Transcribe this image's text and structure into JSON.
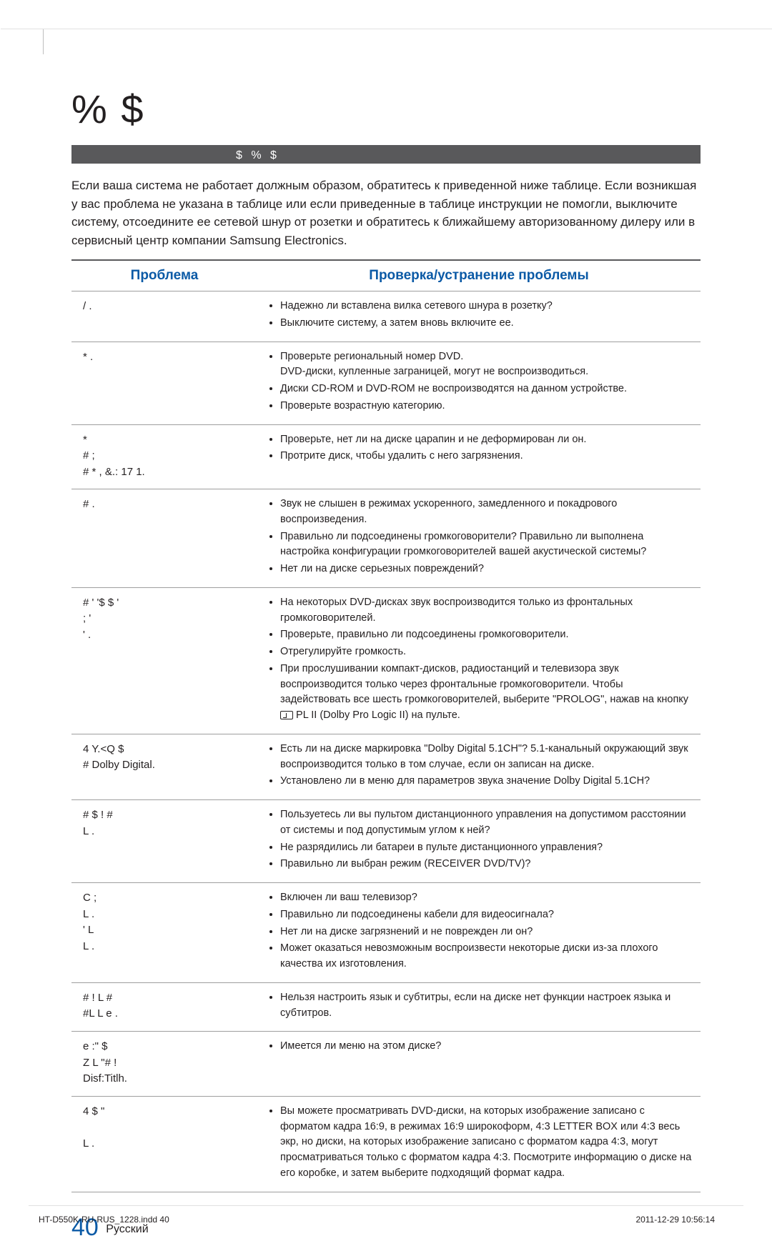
{
  "colors": {
    "heading_blue": "#0b5aa6",
    "section_bar_bg": "#59595b",
    "section_bar_text": "#ffffff",
    "body_text": "#231f20",
    "rule": "#9e9e9e",
    "top_rule": "#bfbfbf",
    "background": "#ffffff"
  },
  "typography": {
    "title_fontsize": 56,
    "th_fontsize": 19,
    "body_fontsize": 14.5,
    "intro_fontsize": 17,
    "footer_fontsize": 12,
    "pagenum_big": 34
  },
  "title": "%               $",
  "section_bar": "$ %       $",
  "intro_text": "Если ваша система не работает должным образом, обратитесь к приведенной ниже таблице. Если возникшая у вас проблема не указана в таблице или если приведенные в таблице инструкции не помогли, выключите систему, отсоедините ее сетевой шнур от розетки и обратитесь к ближайшему авторизованному дилеру или в сервисный центр компании Samsung Electronics.",
  "table": {
    "head_problem": "Проблема",
    "head_fix": "Проверка/устранение проблемы",
    "rows": [
      {
        "problem": "/                     .",
        "fixes": [
          "Надежно ли вставлена вилка сетевого шнура в розетку?",
          "Выключите систему, а затем вновь включите ее."
        ]
      },
      {
        "problem": "*                     .",
        "fixes": [
          "Проверьте региональный номер DVD.\nDVD-диски, купленные заграницей, могут не воспроизводиться.",
          "Диски CD-ROM и DVD-ROM не воспроизводятся на данном устройстве.",
          "Проверьте возрастную категорию."
        ]
      },
      {
        "problem": "*\n   #            ;\n   # * , &.: 17 1.",
        "fixes": [
          "Проверьте, нет ли на диске царапин и не деформирован ли он.",
          "Протрите диск, чтобы удалить с него загрязнения."
        ]
      },
      {
        "problem": "#                   .",
        "fixes": [
          "Звук не слышен в режимах ускоренного, замедленного и покадрового воспроизведения.",
          "Правильно ли подсоединены громкоговорители? Правильно ли выполнена настройка конфигурации громкоговорителей вашей акустической системы?",
          "Нет ли на диске серьезных повреждений?"
        ]
      },
      {
        "problem": "#    '    '$        $  '\n               ;        '\n'         .",
        "fixes": [
          "На некоторых DVD-дисках звук воспроизводится только из фронтальных громкоговорителей.",
          "Проверьте, правильно ли подсоединены громкоговорители.",
          "Отрегулируйте громкость.",
          "При прослушивании компакт-дисков, радиостанций и телевизора звук воспроизводится только через фронтальные громкоговорители. Чтобы задействовать все шесть громкоговорителей, выберите \"PROLOG\", нажав на кнопку  PL II (Dolby Pro Logic II) на пульте."
        ],
        "has_icon": true
      },
      {
        "problem": "4            Y.<Q      $\n#          Dolby Digital.",
        "fixes": [
          "Есть ли на диске маркировка \"Dolby Digital 5.1CH\"? 5.1-канальный окружающий звук воспроизводится только в том случае, если он записан на диске.",
          "Установлено ли в меню для параметров звука значение Dolby Digital 5.1CH?"
        ]
      },
      {
        "problem": "# $      !      #\nL   .",
        "fixes": [
          "Пользуетесь ли вы пультом дистанционного управления на допустимом расстоянии от системы и под допустимым углом к ней?",
          "Не разрядились ли батареи в пульте дистанционного управления?",
          "Правильно ли выбран режим (RECEIVER DVD/TV)?"
        ]
      },
      {
        "problem": "      C      ;\nL                   .\n'         L\nL          .",
        "fixes": [
          "Включен ли ваш телевизор?",
          "Правильно ли подсоединены кабели для видеосигнала?",
          "Нет ли на диске загрязнений и не поврежден ли он?",
          "Может оказаться невозможным воспроизвести некоторые диски из-за плохого качества их изготовления."
        ]
      },
      {
        "problem": "# !   L       #\n     #L       L  e .",
        "fixes": [
          "Нельзя настроить язык и субтитры, если на диске нет функции настроек языка и субтитров."
        ]
      },
      {
        "problem": "   e     :\" $\nZ           L    \"# !\nDisf:Titlh.",
        "fixes": [
          "Имеется ли меню на этом диске?"
        ]
      },
      {
        "problem": "4           $ \"\n\nL    .",
        "fixes": [
          "Вы можете просматривать DVD-диски, на которых изображение записано с форматом кадра 16:9, в режимах 16:9 широкоформ, 4:3 LETTER BOX или 4:3 весь экр, но диски, на которых изображение записано с форматом кадра 4:3, могут просматриваться только с форматом кадра 4:3. Посмотрите информацию о диске на его коробке, и затем выберите подходящий формат кадра."
        ]
      }
    ]
  },
  "page_number": "40",
  "page_lang": "Русский",
  "footer_left": "HT-D550K-RU-RUS_1228.indd   40",
  "footer_right": "2011-12-29     10:56:14"
}
